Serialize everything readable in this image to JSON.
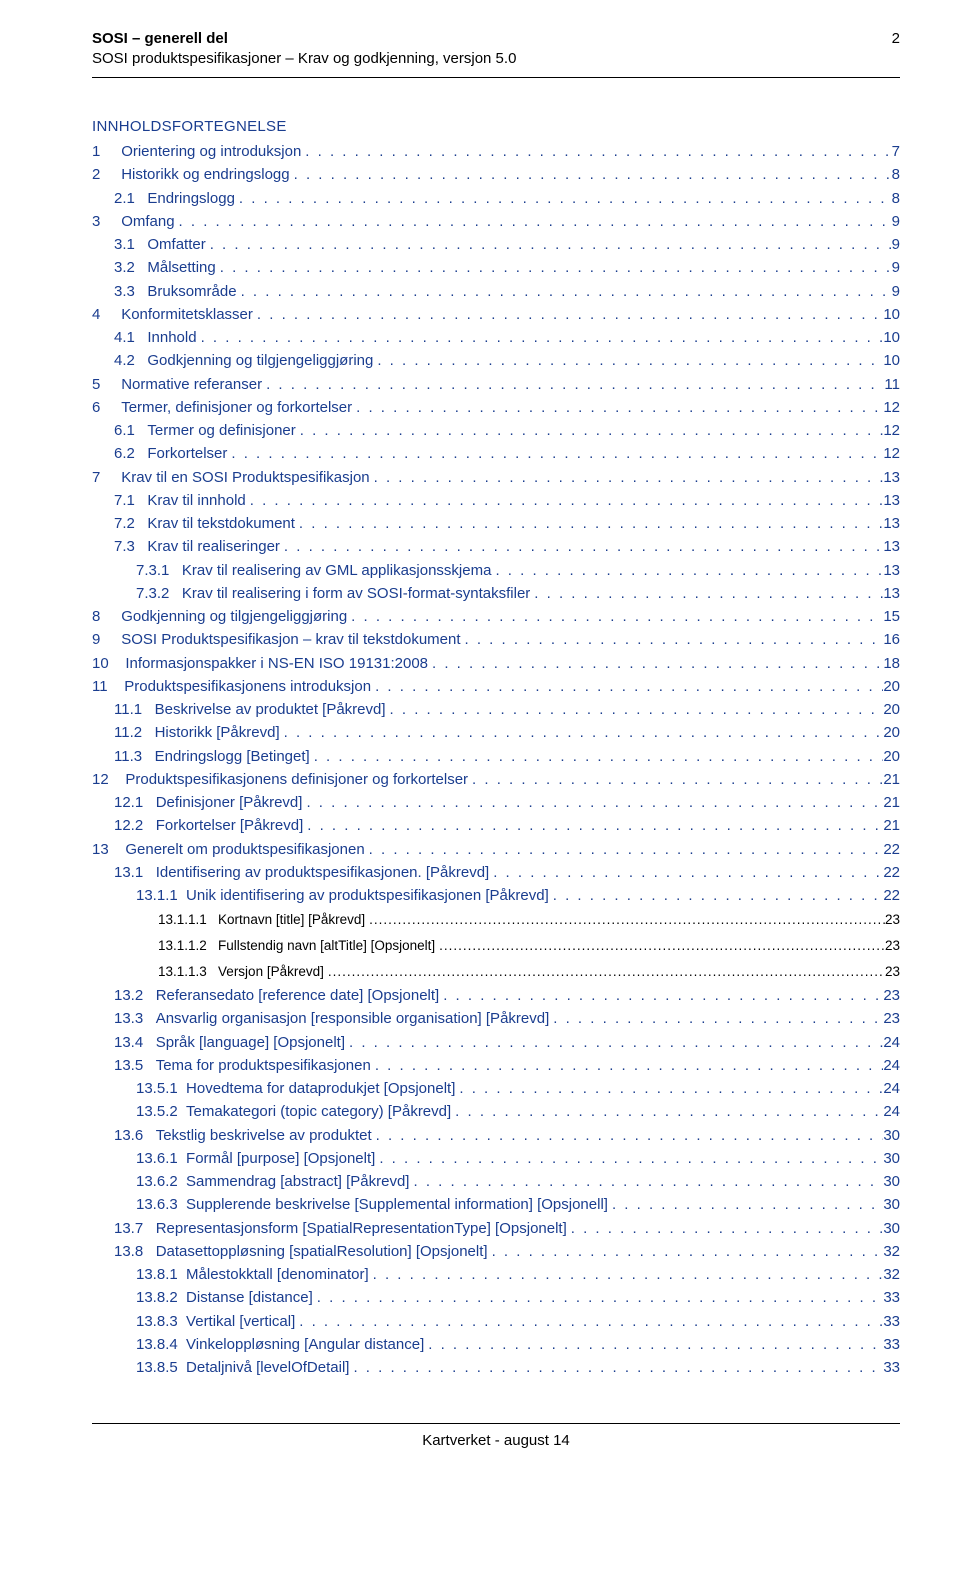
{
  "header": {
    "title": "SOSI – generell del",
    "subtitle": "SOSI produktspesifikasjoner – Krav og godkjenning, versjon 5.0",
    "page": "2"
  },
  "toc_title": "INNHOLDSFORTEGNELSE",
  "toc_color": "#1a3d8f",
  "black_color": "#000000",
  "entries": [
    {
      "indent": 0,
      "num": "1",
      "gap": "     ",
      "text": "Orientering og introduksjon",
      "page": "7",
      "style": "blue"
    },
    {
      "indent": 0,
      "num": "2",
      "gap": "     ",
      "text": "Historikk og endringslogg",
      "page": "8",
      "style": "blue"
    },
    {
      "indent": 1,
      "num": "2.1",
      "gap": "   ",
      "text": "Endringslogg",
      "page": "8",
      "style": "blue"
    },
    {
      "indent": 0,
      "num": "3",
      "gap": "     ",
      "text": "Omfang",
      "page": "9",
      "style": "blue"
    },
    {
      "indent": 1,
      "num": "3.1",
      "gap": "   ",
      "text": "Omfatter",
      "page": "9",
      "style": "blue"
    },
    {
      "indent": 1,
      "num": "3.2",
      "gap": "   ",
      "text": "Målsetting",
      "page": "9",
      "style": "blue"
    },
    {
      "indent": 1,
      "num": "3.3",
      "gap": "   ",
      "text": "Bruksområde",
      "page": "9",
      "style": "blue"
    },
    {
      "indent": 0,
      "num": "4",
      "gap": "     ",
      "text": "Konformitetsklasser",
      "page": "10",
      "style": "blue"
    },
    {
      "indent": 1,
      "num": "4.1",
      "gap": "   ",
      "text": "Innhold",
      "page": "10",
      "style": "blue"
    },
    {
      "indent": 1,
      "num": "4.2",
      "gap": "   ",
      "text": "Godkjenning og tilgjengeliggjøring",
      "page": "10",
      "style": "blue"
    },
    {
      "indent": 0,
      "num": "5",
      "gap": "     ",
      "text": "Normative referanser",
      "page": "11",
      "style": "blue"
    },
    {
      "indent": 0,
      "num": "6",
      "gap": "     ",
      "text": "Termer, definisjoner og forkortelser",
      "page": "12",
      "style": "blue"
    },
    {
      "indent": 1,
      "num": "6.1",
      "gap": "   ",
      "text": "Termer og definisjoner",
      "page": "12",
      "style": "blue"
    },
    {
      "indent": 1,
      "num": "6.2",
      "gap": "   ",
      "text": "Forkortelser",
      "page": "12",
      "style": "blue"
    },
    {
      "indent": 0,
      "num": "7",
      "gap": "     ",
      "text": "Krav til en SOSI Produktspesifikasjon",
      "page": "13",
      "style": "blue"
    },
    {
      "indent": 1,
      "num": "7.1",
      "gap": "   ",
      "text": "Krav til innhold",
      "page": "13",
      "style": "blue"
    },
    {
      "indent": 1,
      "num": "7.2",
      "gap": "   ",
      "text": "Krav til tekstdokument",
      "page": "13",
      "style": "blue"
    },
    {
      "indent": 1,
      "num": "7.3",
      "gap": "   ",
      "text": "Krav til realiseringer",
      "page": "13",
      "style": "blue"
    },
    {
      "indent": 2,
      "num": "7.3.1",
      "gap": "   ",
      "text": "Krav til realisering av GML applikasjonsskjema",
      "page": "13",
      "style": "blue"
    },
    {
      "indent": 2,
      "num": "7.3.2",
      "gap": "   ",
      "text": "Krav til realisering i form av SOSI-format-syntaksfiler",
      "page": "13",
      "style": "blue"
    },
    {
      "indent": 0,
      "num": "8",
      "gap": "     ",
      "text": "Godkjenning og tilgjengeliggjøring",
      "page": "15",
      "style": "blue"
    },
    {
      "indent": 0,
      "num": "9",
      "gap": "     ",
      "text": "SOSI Produktspesifikasjon – krav til tekstdokument",
      "page": "16",
      "style": "blue"
    },
    {
      "indent": 0,
      "num": "10",
      "gap": "    ",
      "text": "Informasjonspakker i NS-EN ISO 19131:2008",
      "page": "18",
      "style": "blue"
    },
    {
      "indent": 0,
      "num": "11",
      "gap": "    ",
      "text": "Produktspesifikasjonens introduksjon",
      "page": "20",
      "style": "blue"
    },
    {
      "indent": 1,
      "num": "11.1",
      "gap": "   ",
      "text": "Beskrivelse av produktet [Påkrevd]",
      "page": "20",
      "style": "blue"
    },
    {
      "indent": 1,
      "num": "11.2",
      "gap": "   ",
      "text": "Historikk [Påkrevd]",
      "page": "20",
      "style": "blue"
    },
    {
      "indent": 1,
      "num": "11.3",
      "gap": "   ",
      "text": "Endringslogg [Betinget]",
      "page": "20",
      "style": "blue"
    },
    {
      "indent": 0,
      "num": "12",
      "gap": "    ",
      "text": "Produktspesifikasjonens definisjoner og forkortelser",
      "page": "21",
      "style": "blue"
    },
    {
      "indent": 1,
      "num": "12.1",
      "gap": "   ",
      "text": "Definisjoner [Påkrevd]",
      "page": "21",
      "style": "blue"
    },
    {
      "indent": 1,
      "num": "12.2",
      "gap": "   ",
      "text": "Forkortelser [Påkrevd]",
      "page": "21",
      "style": "blue"
    },
    {
      "indent": 0,
      "num": "13",
      "gap": "    ",
      "text": "Generelt om produktspesifikasjonen",
      "page": "22",
      "style": "blue"
    },
    {
      "indent": 1,
      "num": "13.1",
      "gap": "   ",
      "text": "Identifisering av produktspesifikasjonen. [Påkrevd]",
      "page": "22",
      "style": "blue"
    },
    {
      "indent": 2,
      "num": "13.1.1",
      "gap": "  ",
      "text": "Unik identifisering av produktspesifikasjonen [Påkrevd]",
      "page": "22",
      "style": "blue"
    },
    {
      "indent": 3,
      "num": "13.1.1.1",
      "gap": "   ",
      "text": "Kortnavn [title] [Påkrevd]",
      "page": "23",
      "style": "black"
    },
    {
      "indent": 3,
      "num": "13.1.1.2",
      "gap": "   ",
      "text": "Fullstendig navn [altTitle] [Opsjonelt]",
      "page": "23",
      "style": "black"
    },
    {
      "indent": 3,
      "num": "13.1.1.3",
      "gap": "   ",
      "text": "Versjon [Påkrevd]",
      "page": "23",
      "style": "black"
    },
    {
      "indent": 1,
      "num": "13.2",
      "gap": "   ",
      "text": "Referansedato [reference date] [Opsjonelt]",
      "page": "23",
      "style": "blue"
    },
    {
      "indent": 1,
      "num": "13.3",
      "gap": "   ",
      "text": "Ansvarlig organisasjon [responsible organisation] [Påkrevd]",
      "page": "23",
      "style": "blue"
    },
    {
      "indent": 1,
      "num": "13.4",
      "gap": "   ",
      "text": "Språk [language] [Opsjonelt]",
      "page": "24",
      "style": "blue"
    },
    {
      "indent": 1,
      "num": "13.5",
      "gap": "   ",
      "text": "Tema for produktspesifikasjonen",
      "page": "24",
      "style": "blue"
    },
    {
      "indent": 2,
      "num": "13.5.1",
      "gap": "  ",
      "text": "Hovedtema for dataprodukjet [Opsjonelt]",
      "page": "24",
      "style": "blue"
    },
    {
      "indent": 2,
      "num": "13.5.2",
      "gap": "  ",
      "text": "Temakategori (topic category) [Påkrevd]",
      "page": "24",
      "style": "blue"
    },
    {
      "indent": 1,
      "num": "13.6",
      "gap": "   ",
      "text": "Tekstlig beskrivelse av produktet",
      "page": "30",
      "style": "blue"
    },
    {
      "indent": 2,
      "num": "13.6.1",
      "gap": "  ",
      "text": "Formål [purpose] [Opsjonelt]",
      "page": "30",
      "style": "blue"
    },
    {
      "indent": 2,
      "num": "13.6.2",
      "gap": "  ",
      "text": "Sammendrag [abstract] [Påkrevd]",
      "page": "30",
      "style": "blue"
    },
    {
      "indent": 2,
      "num": "13.6.3",
      "gap": "  ",
      "text": "Supplerende beskrivelse [Supplemental information] [Opsjonell]",
      "page": "30",
      "style": "blue"
    },
    {
      "indent": 1,
      "num": "13.7",
      "gap": "   ",
      "text": "Representasjonsform [SpatialRepresentationType] [Opsjonelt]",
      "page": "30",
      "style": "blue"
    },
    {
      "indent": 1,
      "num": "13.8",
      "gap": "   ",
      "text": "Datasettoppløsning [spatialResolution] [Opsjonelt]",
      "page": "32",
      "style": "blue"
    },
    {
      "indent": 2,
      "num": "13.8.1",
      "gap": "  ",
      "text": "Målestokktall [denominator]",
      "page": "32",
      "style": "blue"
    },
    {
      "indent": 2,
      "num": "13.8.2",
      "gap": "  ",
      "text": "Distanse [distance]",
      "page": "33",
      "style": "blue"
    },
    {
      "indent": 2,
      "num": "13.8.3",
      "gap": "  ",
      "text": "Vertikal [vertical]",
      "page": "33",
      "style": "blue"
    },
    {
      "indent": 2,
      "num": "13.8.4",
      "gap": "  ",
      "text": "Vinkeloppløsning [Angular distance]",
      "page": "33",
      "style": "blue"
    },
    {
      "indent": 2,
      "num": "13.8.5",
      "gap": "  ",
      "text": "Detaljnivå [levelOfDetail]",
      "page": "33",
      "style": "blue"
    }
  ],
  "footer": "Kartverket - august 14"
}
